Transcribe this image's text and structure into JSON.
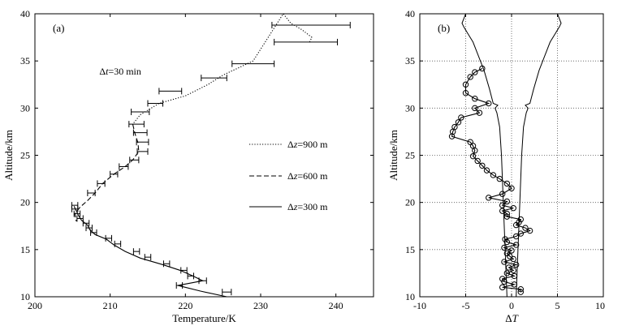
{
  "chart_data": [
    {
      "type": "line",
      "panel_label": "(a)",
      "xlabel": "Temperature/K",
      "ylabel": "Altitude/km",
      "xlim": [
        200,
        245
      ],
      "ylim": [
        10,
        40
      ],
      "xticks": [
        200,
        210,
        220,
        230,
        240
      ],
      "yticks": [
        10,
        15,
        20,
        25,
        30,
        35,
        40
      ],
      "grid": false,
      "legend": "right",
      "annotation": {
        "prefix": "Δ",
        "var": "t",
        "rest": "=30 min",
        "x": 209,
        "y": 34
      },
      "series": [
        {
          "name": {
            "prefix": "Δ",
            "var": "z",
            "rest": "=900 m"
          },
          "style": "dotted",
          "points": [
            [
              236.5,
              37
            ],
            [
              236.8,
              37.5
            ],
            [
              235.5,
              38.3
            ],
            [
              234,
              39
            ],
            [
              233,
              40
            ],
            [
              229,
              35
            ],
            [
              225,
              33.5
            ],
            [
              223,
              32.5
            ],
            [
              220,
              31.3
            ],
            [
              216.5,
              30.5
            ],
            [
              214,
              29.3
            ],
            [
              213,
              28.3
            ]
          ],
          "errorbars": [
            {
              "y": 38.8,
              "x": 236.7,
              "err": 5.2
            },
            {
              "y": 37.0,
              "x": 236.0,
              "err": 4.2
            },
            {
              "y": 34.7,
              "x": 229.0,
              "err": 2.8
            },
            {
              "y": 33.2,
              "x": 223.8,
              "err": 1.7
            },
            {
              "y": 31.8,
              "x": 218.0,
              "err": 1.5
            },
            {
              "y": 30.5,
              "x": 216.0,
              "err": 1.0
            }
          ]
        },
        {
          "name": {
            "prefix": "Δ",
            "var": "z",
            "rest": "=600 m"
          },
          "style": "dashed",
          "points": [
            [
              213,
              28.3
            ],
            [
              213.3,
              27.3
            ],
            [
              213.7,
              26.3
            ],
            [
              213.8,
              25.4
            ],
            [
              213,
              24.5
            ],
            [
              212,
              23.8
            ],
            [
              210.5,
              23
            ],
            [
              209,
              22
            ],
            [
              208,
              21
            ],
            [
              207,
              20.2
            ],
            [
              206,
              19.5
            ],
            [
              205.3,
              18.8
            ],
            [
              205.5,
              18
            ]
          ],
          "errorbars": [
            {
              "y": 29.6,
              "x": 214.0,
              "err": 1.2
            },
            {
              "y": 28.3,
              "x": 213.5,
              "err": 1.0
            },
            {
              "y": 27.4,
              "x": 214.0,
              "err": 0.9
            },
            {
              "y": 26.4,
              "x": 214.3,
              "err": 0.8
            },
            {
              "y": 25.4,
              "x": 214.3,
              "err": 0.7
            },
            {
              "y": 24.5,
              "x": 213.2,
              "err": 0.6
            },
            {
              "y": 23.8,
              "x": 211.8,
              "err": 0.6
            },
            {
              "y": 23.0,
              "x": 210.5,
              "err": 0.5
            },
            {
              "y": 22.0,
              "x": 208.8,
              "err": 0.5
            },
            {
              "y": 21.0,
              "x": 207.5,
              "err": 0.5
            },
            {
              "y": 19.7,
              "x": 205.3,
              "err": 0.4
            }
          ]
        },
        {
          "name": {
            "prefix": "Δ",
            "var": "z",
            "rest": "=300 m"
          },
          "style": "solid",
          "points": [
            [
              225.5,
              10
            ],
            [
              222,
              10.6
            ],
            [
              219,
              11.2
            ],
            [
              221,
              11.5
            ],
            [
              222.3,
              11.7
            ],
            [
              221,
              12.2
            ],
            [
              219.3,
              12.8
            ],
            [
              217,
              13.4
            ],
            [
              214,
              14.1
            ],
            [
              212,
              14.8
            ],
            [
              210.5,
              15.5
            ],
            [
              209.5,
              16.1
            ],
            [
              208,
              16.6
            ],
            [
              207.3,
              17.1
            ],
            [
              207,
              17.6
            ],
            [
              206.2,
              18.1
            ],
            [
              205.8,
              18.6
            ],
            [
              205.5,
              19.1
            ],
            [
              205.2,
              19.6
            ]
          ],
          "errorbars": [
            {
              "y": 10.5,
              "x": 225.5,
              "err": 0.6
            },
            {
              "y": 11.2,
              "x": 219.2,
              "err": 0.4
            },
            {
              "y": 11.7,
              "x": 222.3,
              "err": 0.5
            },
            {
              "y": 12.2,
              "x": 220.7,
              "err": 0.4
            },
            {
              "y": 12.8,
              "x": 219.8,
              "err": 0.4
            },
            {
              "y": 13.5,
              "x": 217.5,
              "err": 0.4
            },
            {
              "y": 14.2,
              "x": 215.0,
              "err": 0.4
            },
            {
              "y": 14.8,
              "x": 213.5,
              "err": 0.4
            },
            {
              "y": 15.6,
              "x": 211.0,
              "err": 0.4
            },
            {
              "y": 16.2,
              "x": 209.8,
              "err": 0.4
            },
            {
              "y": 16.8,
              "x": 207.8,
              "err": 0.4
            },
            {
              "y": 17.3,
              "x": 207.2,
              "err": 0.4
            },
            {
              "y": 17.8,
              "x": 206.8,
              "err": 0.4
            },
            {
              "y": 18.3,
              "x": 206.0,
              "err": 0.4
            },
            {
              "y": 18.8,
              "x": 205.6,
              "err": 0.4
            },
            {
              "y": 19.3,
              "x": 205.3,
              "err": 0.4
            }
          ]
        }
      ]
    },
    {
      "type": "line",
      "panel_label": "(b)",
      "xlabel": {
        "prefix": "Δ",
        "var": "T",
        "rest": ""
      },
      "ylabel": "Altitude/km",
      "xlim": [
        -10,
        10
      ],
      "ylim": [
        10,
        40
      ],
      "xticks": [
        -10,
        -5,
        0,
        5,
        10
      ],
      "xtick_labels": [
        "-10",
        "-5",
        "0",
        "5",
        "10"
      ],
      "yticks": [
        10,
        15,
        20,
        25,
        30,
        35,
        40
      ],
      "grid": true,
      "series": [
        {
          "name": "",
          "style": "circle-line",
          "points": [
            [
              1.0,
              10.5
            ],
            [
              1.0,
              10.8
            ],
            [
              -1.0,
              11.0
            ],
            [
              0.3,
              11.3
            ],
            [
              -0.8,
              11.6
            ],
            [
              -1.0,
              11.9
            ],
            [
              0.3,
              12.2
            ],
            [
              -0.5,
              12.5
            ],
            [
              0.2,
              12.8
            ],
            [
              -0.3,
              13.1
            ],
            [
              0.5,
              13.4
            ],
            [
              -0.8,
              13.7
            ],
            [
              0.2,
              14.0
            ],
            [
              -0.2,
              14.3
            ],
            [
              -0.5,
              14.6
            ],
            [
              0.0,
              14.9
            ],
            [
              -0.8,
              15.2
            ],
            [
              0.5,
              15.5
            ],
            [
              -0.5,
              15.8
            ],
            [
              -0.7,
              16.1
            ],
            [
              0.5,
              16.4
            ],
            [
              1.0,
              16.7
            ],
            [
              2.0,
              17.0
            ],
            [
              1.5,
              17.3
            ],
            [
              0.5,
              17.6
            ],
            [
              0.8,
              17.9
            ],
            [
              1.0,
              18.2
            ],
            [
              -0.5,
              18.5
            ],
            [
              -0.5,
              18.8
            ],
            [
              -1.0,
              19.1
            ],
            [
              0.2,
              19.4
            ],
            [
              -1.0,
              19.7
            ],
            [
              -0.5,
              20.1
            ],
            [
              -2.5,
              20.5
            ],
            [
              -1.0,
              20.9
            ],
            [
              0.0,
              21.5
            ],
            [
              -0.5,
              22.0
            ],
            [
              -1.3,
              22.5
            ],
            [
              -2.0,
              22.9
            ],
            [
              -2.7,
              23.4
            ],
            [
              -3.2,
              23.9
            ],
            [
              -3.7,
              24.4
            ],
            [
              -4.2,
              24.9
            ],
            [
              -4.0,
              25.5
            ],
            [
              -4.2,
              26.0
            ],
            [
              -4.5,
              26.4
            ],
            [
              -6.5,
              27.0
            ],
            [
              -6.4,
              27.5
            ],
            [
              -6.2,
              28.0
            ],
            [
              -5.8,
              28.5
            ],
            [
              -5.5,
              29.0
            ],
            [
              -3.5,
              29.5
            ],
            [
              -4.0,
              30.0
            ],
            [
              -2.5,
              30.5
            ],
            [
              -4.0,
              31.0
            ],
            [
              -5.0,
              31.6
            ],
            [
              -5.0,
              32.5
            ],
            [
              -4.5,
              33.3
            ],
            [
              -4.0,
              33.8
            ],
            [
              -3.2,
              34.2
            ]
          ]
        }
      ],
      "envelope_right": [
        [
          0.5,
          10
        ],
        [
          0.7,
          15
        ],
        [
          0.9,
          20
        ],
        [
          1.1,
          25
        ],
        [
          1.3,
          28
        ],
        [
          1.6,
          29.5
        ],
        [
          1.8,
          30
        ],
        [
          1.5,
          30.3
        ],
        [
          2.0,
          30.5
        ],
        [
          2.4,
          32
        ],
        [
          3.0,
          34
        ],
        [
          3.6,
          35.5
        ],
        [
          4.2,
          37
        ],
        [
          4.7,
          37.8
        ],
        [
          5.2,
          38.6
        ],
        [
          5.4,
          39
        ],
        [
          5.2,
          39.5
        ],
        [
          5.0,
          40
        ]
      ],
      "envelope_left": [
        [
          -0.5,
          10
        ],
        [
          -0.7,
          15
        ],
        [
          -0.9,
          20
        ],
        [
          -1.1,
          25
        ],
        [
          -1.3,
          28
        ],
        [
          -1.6,
          29.5
        ],
        [
          -1.8,
          30
        ],
        [
          -1.5,
          30.3
        ],
        [
          -2.0,
          30.5
        ],
        [
          -2.4,
          32
        ],
        [
          -3.0,
          34
        ],
        [
          -3.6,
          35.5
        ],
        [
          -4.2,
          37
        ],
        [
          -4.7,
          37.8
        ],
        [
          -5.2,
          38.6
        ],
        [
          -5.4,
          39
        ],
        [
          -5.2,
          39.5
        ],
        [
          -5.0,
          40
        ]
      ]
    }
  ]
}
